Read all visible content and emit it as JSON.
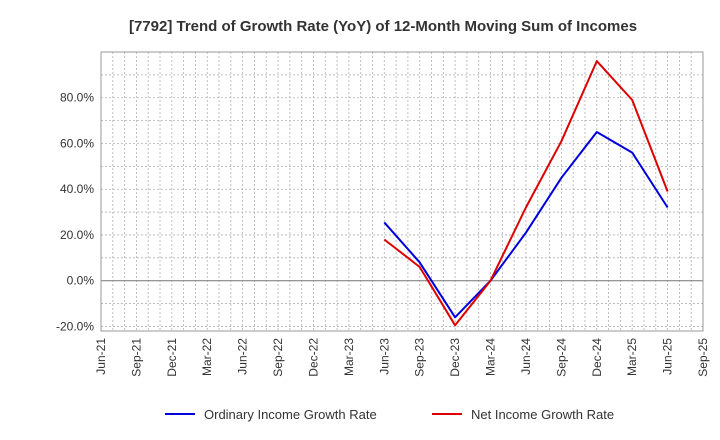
{
  "chart_data": {
    "type": "line",
    "title": "[7792]  Trend of Growth Rate (YoY) of 12-Month Moving Sum of Incomes",
    "xlabel": "",
    "ylabel": "",
    "x": [
      "Jun-21",
      "Sep-21",
      "Dec-21",
      "Mar-22",
      "Jun-22",
      "Sep-22",
      "Dec-22",
      "Mar-23",
      "Jun-23",
      "Sep-23",
      "Dec-23",
      "Mar-24",
      "Jun-24",
      "Sep-24",
      "Dec-24",
      "Mar-25",
      "Jun-25",
      "Sep-25"
    ],
    "yticks": [
      "-20.0%",
      "0.0%",
      "20.0%",
      "40.0%",
      "60.0%",
      "80.0%"
    ],
    "ytick_values": [
      -20,
      0,
      20,
      40,
      60,
      80
    ],
    "ylim": [
      -22,
      100
    ],
    "grid": true,
    "legend_position": "bottom",
    "series": [
      {
        "name": "Ordinary Income Growth Rate",
        "color": "#0000dd",
        "values": [
          null,
          null,
          null,
          null,
          null,
          null,
          null,
          null,
          25.5,
          8.0,
          -16.0,
          0.0,
          21.0,
          45.0,
          65.0,
          56.0,
          32.0,
          null
        ]
      },
      {
        "name": "Net Income Growth Rate",
        "color": "#dd0000",
        "values": [
          null,
          null,
          null,
          null,
          null,
          null,
          null,
          null,
          18.0,
          6.0,
          -19.5,
          0.0,
          32.0,
          61.0,
          96.0,
          79.0,
          39.0,
          null
        ]
      }
    ]
  }
}
